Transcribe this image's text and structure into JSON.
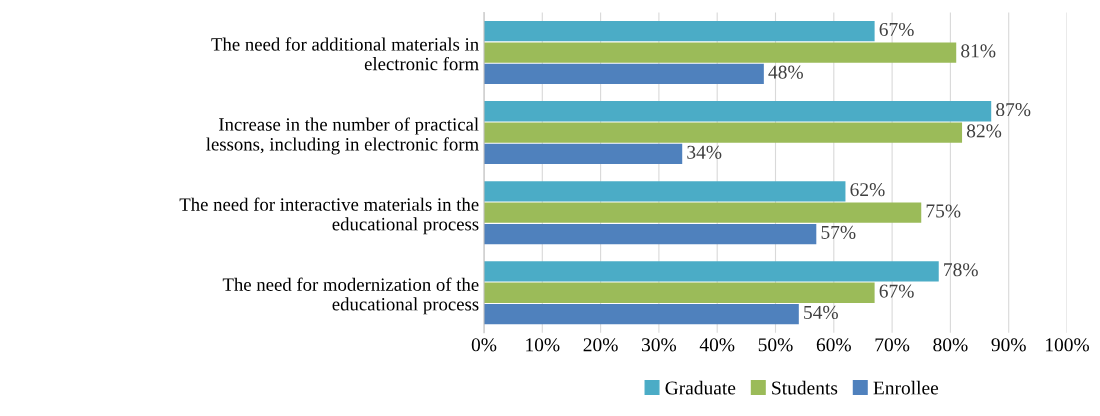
{
  "chart_data": {
    "type": "bar",
    "orientation": "horizontal",
    "categories": [
      "The need for additional materials in electronic form",
      "Increase in the number of practical lessons, including in electronic form",
      "The need for interactive materials in the educational process",
      "The need for modernization of the educational process"
    ],
    "series": [
      {
        "name": "Graduate",
        "color": "#4bacc6",
        "values": [
          67,
          87,
          62,
          78
        ],
        "value_labels": [
          "67%",
          "87%",
          "62%",
          "78%"
        ]
      },
      {
        "name": "Students",
        "color": "#9bbb59",
        "values": [
          81,
          82,
          75,
          67
        ],
        "value_labels": [
          "81%",
          "82%",
          "75%",
          "67%"
        ]
      },
      {
        "name": "Enrollee",
        "color": "#4f81bd",
        "values": [
          48,
          34,
          57,
          54
        ],
        "value_labels": [
          "48%",
          "34%",
          "57%",
          "54%"
        ]
      }
    ],
    "xlim": [
      0,
      100
    ],
    "xticks": [
      {
        "value": 0,
        "label": "0%"
      },
      {
        "value": 10,
        "label": "10%"
      },
      {
        "value": 20,
        "label": "20%"
      },
      {
        "value": 30,
        "label": "30%"
      },
      {
        "value": 40,
        "label": "40%"
      },
      {
        "value": 50,
        "label": "50%"
      },
      {
        "value": 60,
        "label": "60%"
      },
      {
        "value": 70,
        "label": "70%"
      },
      {
        "value": 80,
        "label": "80%"
      },
      {
        "value": 90,
        "label": "90%"
      },
      {
        "value": 100,
        "label": "100%"
      }
    ],
    "grid": "x",
    "legend": "bottom"
  }
}
